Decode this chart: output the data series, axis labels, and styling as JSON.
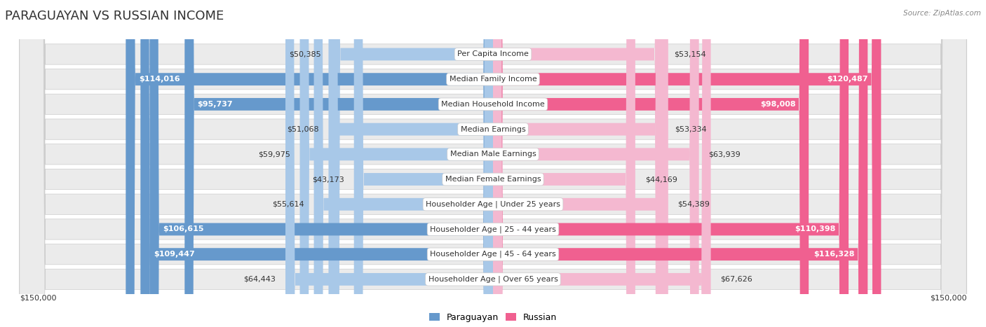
{
  "title": "PARAGUAYAN VS RUSSIAN INCOME",
  "source": "Source: ZipAtlas.com",
  "categories": [
    "Per Capita Income",
    "Median Family Income",
    "Median Household Income",
    "Median Earnings",
    "Median Male Earnings",
    "Median Female Earnings",
    "Householder Age | Under 25 years",
    "Householder Age | 25 - 44 years",
    "Householder Age | 45 - 64 years",
    "Householder Age | Over 65 years"
  ],
  "paraguayan_values": [
    50385,
    114016,
    95737,
    51068,
    59975,
    43173,
    55614,
    106615,
    109447,
    64443
  ],
  "russian_values": [
    53154,
    120487,
    98008,
    53334,
    63939,
    44169,
    54389,
    110398,
    116328,
    67626
  ],
  "max_value": 150000,
  "paraguayan_color_normal": "#a8c8e8",
  "paraguayan_color_highlight": "#6699cc",
  "russian_color_normal": "#f4b8d0",
  "russian_color_highlight": "#f06090",
  "highlight_threshold": 90000,
  "background_color": "#ffffff",
  "row_bg_color": "#ebebeb",
  "title_fontsize": 13,
  "label_fontsize": 8,
  "value_fontsize": 8,
  "legend_paraguayan": "Paraguayan",
  "legend_russian": "Russian"
}
